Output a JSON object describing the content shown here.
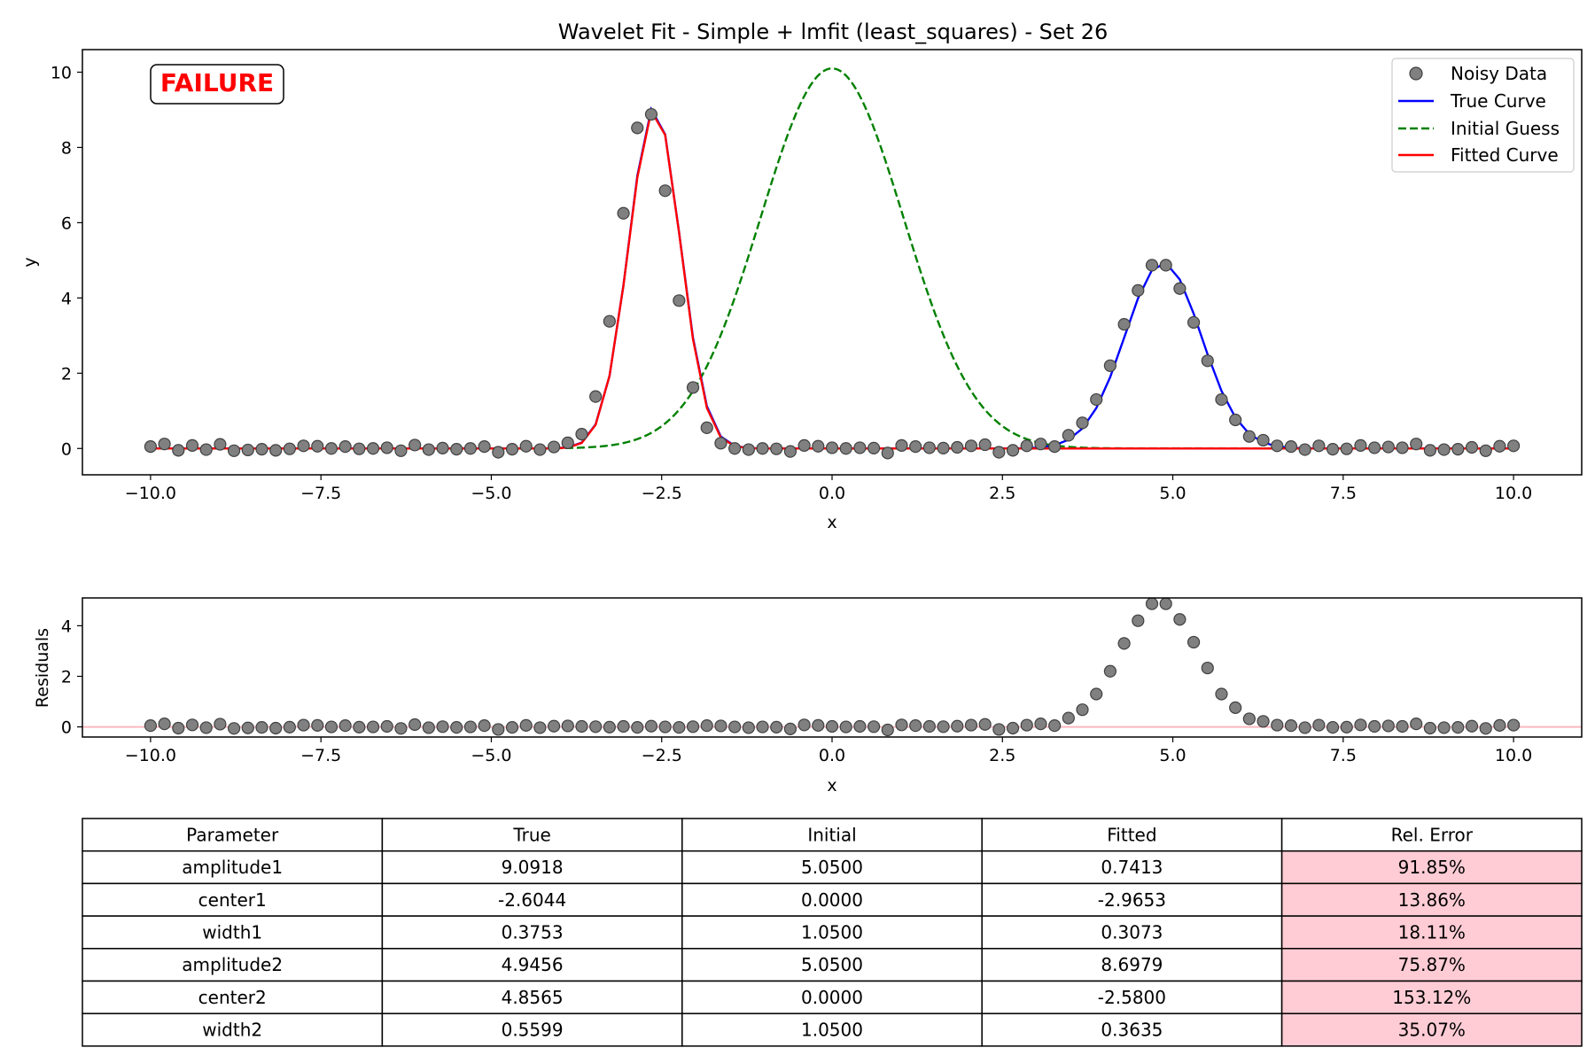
{
  "colors": {
    "noisy": "#808080",
    "noisy_edge": "#404040",
    "true": "#0000ff",
    "initial": "#008000",
    "fitted": "#ff0000",
    "zero_line": "#ffb6c1",
    "error_cell": "#ffccd5",
    "badge_text": "#ff0000"
  },
  "chart_data": [
    {
      "type": "line",
      "title": "Wavelet Fit - Simple + lmfit (least_squares) - Set 26",
      "xlabel": "x",
      "ylabel": "y",
      "xlim": [
        -11,
        11
      ],
      "ylim": [
        -0.7,
        10.6
      ],
      "xticks": [
        -10.0,
        -7.5,
        -5.0,
        -2.5,
        0.0,
        2.5,
        5.0,
        7.5,
        10.0
      ],
      "xtick_labels": [
        "−10.0",
        "−7.5",
        "−5.0",
        "−2.5",
        "0.0",
        "2.5",
        "5.0",
        "7.5",
        "10.0"
      ],
      "yticks": [
        0,
        2,
        4,
        6,
        8,
        10
      ],
      "ytick_labels": [
        "0",
        "2",
        "4",
        "6",
        "8",
        "10"
      ],
      "grid": false,
      "legend_position": "top-right",
      "badge": "FAILURE",
      "legend": [
        {
          "label": "Noisy Data",
          "style": "marker",
          "color": "#808080"
        },
        {
          "label": "True Curve",
          "style": "solid",
          "color": "#0000ff"
        },
        {
          "label": "Initial Guess",
          "style": "dashed",
          "color": "#008000"
        },
        {
          "label": "Fitted Curve",
          "style": "solid",
          "color": "#ff0000"
        }
      ],
      "noisy_x_range": [
        -10,
        10
      ],
      "noisy_y": [
        0.05,
        0.12,
        -0.05,
        0.08,
        -0.03,
        0.11,
        -0.06,
        -0.04,
        -0.02,
        -0.05,
        -0.01,
        0.07,
        0.06,
        0.0,
        0.05,
        -0.01,
        0.0,
        0.02,
        -0.06,
        0.09,
        -0.03,
        0.01,
        -0.02,
        0.0,
        0.05,
        -0.1,
        -0.02,
        0.06,
        -0.03,
        0.04,
        0.15,
        0.38,
        1.38,
        3.38,
        6.25,
        8.52,
        8.88,
        6.85,
        3.93,
        1.62,
        0.55,
        0.14,
        0.0,
        -0.03,
        0.0,
        -0.01,
        -0.08,
        0.08,
        0.06,
        0.02,
        0.0,
        0.02,
        0.01,
        -0.12,
        0.08,
        0.05,
        0.02,
        0.01,
        0.03,
        0.07,
        0.1,
        -0.1,
        -0.05,
        0.07,
        0.12,
        0.05,
        0.35,
        0.68,
        1.3,
        2.2,
        3.3,
        4.2,
        4.87,
        4.87,
        4.25,
        3.35,
        2.33,
        1.3,
        0.76,
        0.32,
        0.22,
        0.07,
        0.05,
        -0.03,
        0.07,
        -0.02,
        -0.01,
        0.08,
        0.02,
        0.04,
        0.02,
        0.12,
        -0.05,
        -0.03,
        -0.02,
        0.03,
        -0.06,
        0.06,
        0.07
      ],
      "true_params": {
        "amplitude1": 9.0918,
        "center1": -2.6044,
        "width1": 0.3753,
        "amplitude2": 4.9456,
        "center2": 4.8565,
        "width2": 0.5599
      },
      "initial_params": {
        "amplitude1": 5.05,
        "center1": 0.0,
        "width1": 1.05,
        "amplitude2": 5.05,
        "center2": 0.0,
        "width2": 1.05
      },
      "fitted_params": {
        "amplitude1": 0.7413,
        "center1": -2.9653,
        "width1": 0.3073,
        "amplitude2": 8.6979,
        "center2": -2.58,
        "width2": 0.3635
      }
    },
    {
      "type": "scatter",
      "title": "",
      "xlabel": "x",
      "ylabel": "Residuals",
      "xlim": [
        -11,
        11
      ],
      "ylim": [
        -0.4,
        5.1
      ],
      "xticks": [
        -10.0,
        -7.5,
        -5.0,
        -2.5,
        0.0,
        2.5,
        5.0,
        7.5,
        10.0
      ],
      "xtick_labels": [
        "−10.0",
        "−7.5",
        "−5.0",
        "−2.5",
        "0.0",
        "2.5",
        "5.0",
        "7.5",
        "10.0"
      ],
      "yticks": [
        0,
        2,
        4
      ],
      "ytick_labels": [
        "0",
        "2",
        "4"
      ],
      "grid": false,
      "reference_line_y": 0,
      "residuals_y": [
        0.05,
        0.12,
        -0.05,
        0.08,
        -0.03,
        0.11,
        -0.06,
        -0.04,
        -0.02,
        -0.05,
        -0.01,
        0.07,
        0.06,
        0.0,
        0.05,
        -0.01,
        0.0,
        0.02,
        -0.06,
        0.09,
        -0.03,
        0.01,
        -0.02,
        0.0,
        0.05,
        -0.1,
        -0.02,
        0.06,
        -0.03,
        0.03,
        0.04,
        0.02,
        0.01,
        -0.01,
        0.02,
        -0.02,
        0.03,
        0.0,
        -0.02,
        0.01,
        0.05,
        0.04,
        0.0,
        -0.03,
        0.0,
        -0.01,
        -0.08,
        0.08,
        0.06,
        0.02,
        0.0,
        0.02,
        0.01,
        -0.12,
        0.08,
        0.05,
        0.02,
        0.01,
        0.03,
        0.07,
        0.1,
        -0.1,
        -0.05,
        0.07,
        0.12,
        0.05,
        0.35,
        0.68,
        1.3,
        2.2,
        3.3,
        4.2,
        4.87,
        4.87,
        4.25,
        3.35,
        2.33,
        1.3,
        0.76,
        0.32,
        0.22,
        0.07,
        0.05,
        -0.03,
        0.07,
        -0.02,
        -0.01,
        0.08,
        0.02,
        0.04,
        0.02,
        0.12,
        -0.05,
        -0.03,
        -0.02,
        0.03,
        -0.06,
        0.06,
        0.07
      ]
    },
    {
      "type": "table",
      "columns": [
        "Parameter",
        "True",
        "Initial",
        "Fitted",
        "Rel. Error"
      ],
      "rows": [
        [
          "amplitude1",
          "9.0918",
          "5.0500",
          "0.7413",
          "91.85%"
        ],
        [
          "center1",
          "-2.6044",
          "0.0000",
          "-2.9653",
          "13.86%"
        ],
        [
          "width1",
          "0.3753",
          "1.0500",
          "0.3073",
          "18.11%"
        ],
        [
          "amplitude2",
          "4.9456",
          "5.0500",
          "8.6979",
          "75.87%"
        ],
        [
          "center2",
          "4.8565",
          "0.0000",
          "-2.5800",
          "153.12%"
        ],
        [
          "width2",
          "0.5599",
          "1.0500",
          "0.3635",
          "35.07%"
        ]
      ],
      "highlight_column": 4
    }
  ]
}
